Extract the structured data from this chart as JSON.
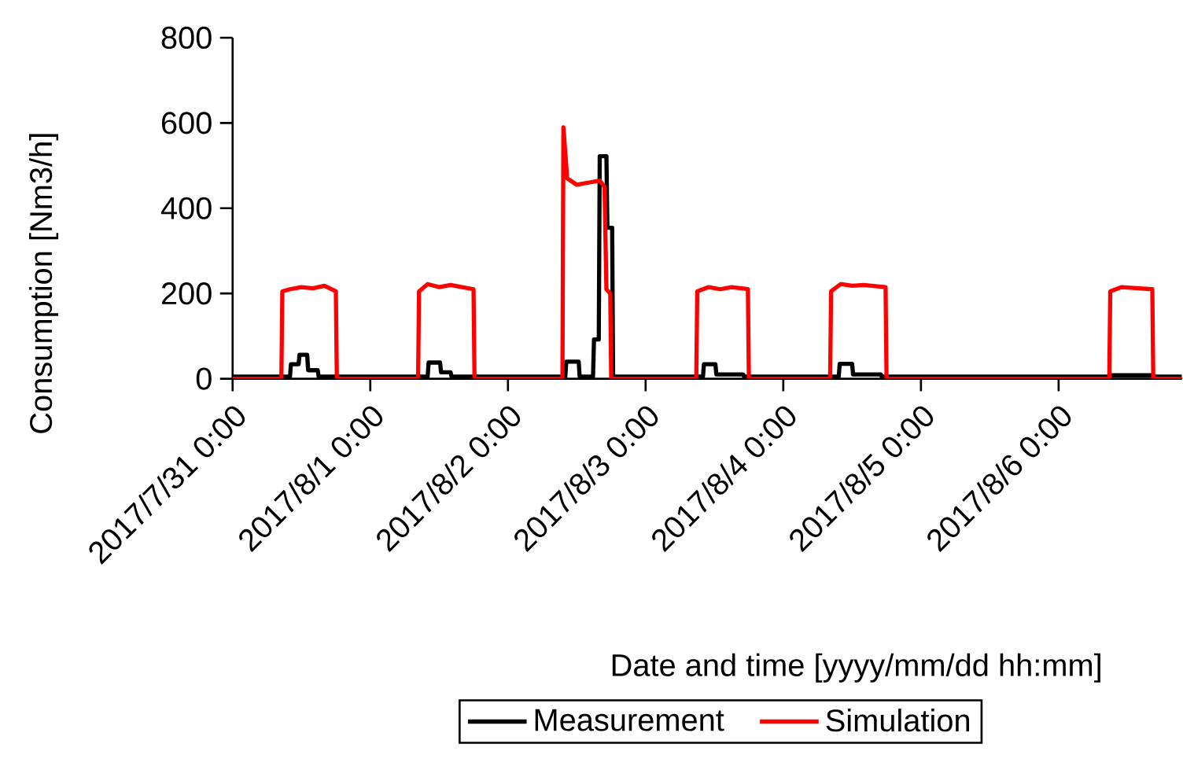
{
  "chart_data": {
    "type": "line",
    "xlabel": "Date and time [yyyy/mm/dd hh:mm]",
    "ylabel": "Consumption [Nm3/h]",
    "xlim": [
      "2017-07-31T00:00",
      "2017-08-06T21:30"
    ],
    "xticks": [
      {
        "value": "2017-07-31T00:00",
        "label": "2017/7/31 0:00"
      },
      {
        "value": "2017-08-01T00:00",
        "label": "2017/8/1 0:00"
      },
      {
        "value": "2017-08-02T00:00",
        "label": "2017/8/2 0:00"
      },
      {
        "value": "2017-08-03T00:00",
        "label": "2017/8/3 0:00"
      },
      {
        "value": "2017-08-04T00:00",
        "label": "2017/8/4 0:00"
      },
      {
        "value": "2017-08-05T00:00",
        "label": "2017/8/5 0:00"
      },
      {
        "value": "2017-08-06T00:00",
        "label": "2017/8/6 0:00"
      }
    ],
    "ylim": [
      0,
      800
    ],
    "yticks": [
      0,
      200,
      400,
      600,
      800
    ],
    "legend": "bottom",
    "series": [
      {
        "name": "Measurement",
        "color": "#000000",
        "x": [
          "2017-07-31T00:00",
          "2017-07-31T10:00",
          "2017-07-31T10:10",
          "2017-07-31T11:30",
          "2017-07-31T11:40",
          "2017-07-31T13:00",
          "2017-07-31T13:10",
          "2017-07-31T14:50",
          "2017-07-31T15:00",
          "2017-08-01T10:00",
          "2017-08-01T10:10",
          "2017-08-01T12:10",
          "2017-08-01T12:20",
          "2017-08-01T14:00",
          "2017-08-01T14:10",
          "2017-08-02T10:00",
          "2017-08-02T10:10",
          "2017-08-02T12:20",
          "2017-08-02T12:30",
          "2017-08-02T14:50",
          "2017-08-02T15:00",
          "2017-08-02T15:50",
          "2017-08-02T16:00",
          "2017-08-02T17:10",
          "2017-08-02T17:20",
          "2017-08-02T18:10",
          "2017-08-02T18:20",
          "2017-08-03T10:00",
          "2017-08-03T10:10",
          "2017-08-03T12:10",
          "2017-08-03T12:20",
          "2017-08-03T17:00",
          "2017-08-03T17:10",
          "2017-08-04T09:40",
          "2017-08-04T09:50",
          "2017-08-04T12:00",
          "2017-08-04T12:10",
          "2017-08-04T17:00",
          "2017-08-04T17:10",
          "2017-08-06T09:00",
          "2017-08-06T09:10",
          "2017-08-06T16:30",
          "2017-08-06T16:40",
          "2017-08-06T21:30"
        ],
        "values": [
          5,
          5,
          34,
          34,
          56,
          56,
          20,
          20,
          5,
          5,
          38,
          38,
          15,
          15,
          5,
          5,
          40,
          40,
          5,
          5,
          92,
          92,
          522,
          522,
          354,
          354,
          5,
          5,
          34,
          34,
          10,
          10,
          5,
          5,
          35,
          35,
          10,
          10,
          5,
          5,
          8,
          8,
          5,
          5
        ]
      },
      {
        "name": "Simulation",
        "color": "#ff0000",
        "x": [
          "2017-07-31T00:00",
          "2017-07-31T08:30",
          "2017-07-31T08:40",
          "2017-07-31T10:00",
          "2017-07-31T12:00",
          "2017-07-31T14:00",
          "2017-07-31T16:00",
          "2017-07-31T18:00",
          "2017-07-31T18:10",
          "2017-08-01T08:20",
          "2017-08-01T08:30",
          "2017-08-01T10:00",
          "2017-08-01T12:00",
          "2017-08-01T14:00",
          "2017-08-01T16:00",
          "2017-08-01T18:00",
          "2017-08-01T18:10",
          "2017-08-02T09:30",
          "2017-08-02T09:40",
          "2017-08-02T10:20",
          "2017-08-02T12:00",
          "2017-08-02T14:00",
          "2017-08-02T16:00",
          "2017-08-02T16:50",
          "2017-08-02T17:10",
          "2017-08-02T17:50",
          "2017-08-02T18:00",
          "2017-08-03T08:50",
          "2017-08-03T09:00",
          "2017-08-03T11:00",
          "2017-08-03T13:00",
          "2017-08-03T15:00",
          "2017-08-03T17:50",
          "2017-08-03T18:00",
          "2017-08-04T08:10",
          "2017-08-04T08:20",
          "2017-08-04T10:00",
          "2017-08-04T12:00",
          "2017-08-04T14:00",
          "2017-08-04T17:50",
          "2017-08-04T18:00",
          "2017-08-06T08:50",
          "2017-08-06T09:00",
          "2017-08-06T11:00",
          "2017-08-06T14:00",
          "2017-08-06T16:20",
          "2017-08-06T16:30",
          "2017-08-06T21:30"
        ],
        "values": [
          0,
          0,
          205,
          210,
          215,
          212,
          218,
          205,
          0,
          0,
          205,
          222,
          215,
          220,
          215,
          210,
          0,
          0,
          590,
          470,
          455,
          460,
          465,
          450,
          210,
          200,
          0,
          0,
          205,
          215,
          210,
          215,
          210,
          0,
          0,
          205,
          222,
          218,
          220,
          215,
          0,
          0,
          205,
          215,
          212,
          210,
          0,
          0
        ]
      }
    ]
  }
}
